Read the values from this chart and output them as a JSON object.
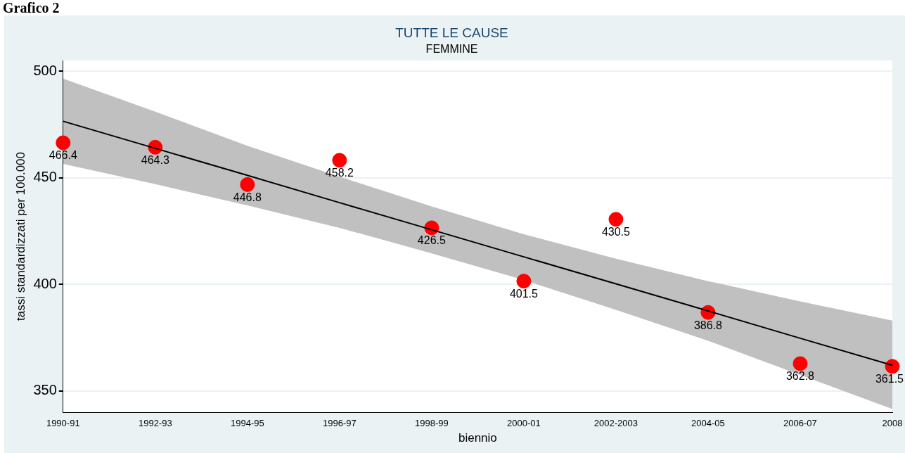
{
  "chart_data": {
    "type": "scatter",
    "title": "TUTTE LE CAUSE",
    "subtitle": "FEMMINE",
    "xlabel": "biennio",
    "ylabel": "tassi standardizzati per 100.000",
    "annotations": [
      "Grafico 2"
    ],
    "categories": [
      "1990-91",
      "1992-93",
      "1994-95",
      "1996-97",
      "1998-99",
      "2000-01",
      "2002-2003",
      "2004-05",
      "2006-07",
      "2008"
    ],
    "ylim": [
      340,
      505
    ],
    "yticks": [
      350,
      400,
      450,
      500
    ],
    "grid": "y",
    "legend": false,
    "marker": "circle",
    "series": [
      {
        "type": "line",
        "marker": "none",
        "color": "#000000",
        "values": [
          476.5,
          463.8,
          451.1,
          438.3,
          425.6,
          412.9,
          400.2,
          387.5,
          374.7,
          362.0
        ],
        "lower": [
          456.5,
          447,
          437,
          426.5,
          414.5,
          402,
          388,
          373.5,
          357.5,
          341.5
        ],
        "upper": [
          496.5,
          481,
          465,
          450.5,
          436.5,
          423.5,
          412,
          401.5,
          392,
          383
        ]
      },
      {
        "color": "#ff0000",
        "values": [
          466.4,
          464.3,
          446.8,
          458.2,
          426.5,
          401.5,
          430.5,
          386.8,
          362.8,
          361.5
        ],
        "value_labels": [
          "466.4",
          "464.3",
          "446.8",
          "458.2",
          "426.5",
          "401.5",
          "430.5",
          "386.8",
          "362.8",
          "361.5"
        ]
      }
    ]
  }
}
